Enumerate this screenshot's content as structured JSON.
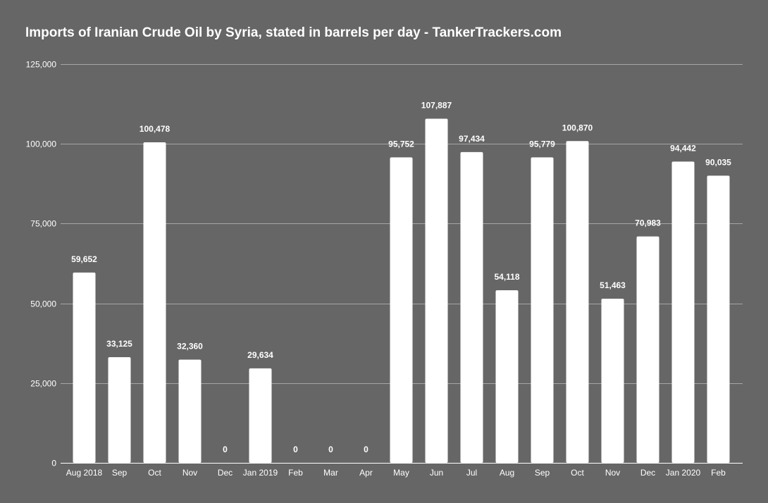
{
  "chart_data": {
    "type": "bar",
    "title": "Imports of Iranian Crude Oil by Syria, stated in barrels per day - TankerTrackers.com",
    "xlabel": "",
    "ylabel": "",
    "categories": [
      "Aug 2018",
      "Sep",
      "Oct",
      "Nov",
      "Dec",
      "Jan 2019",
      "Feb",
      "Mar",
      "Apr",
      "May",
      "Jun",
      "Jul",
      "Aug",
      "Sep",
      "Oct",
      "Nov",
      "Dec",
      "Jan 2020",
      "Feb"
    ],
    "values": [
      59652,
      33125,
      100478,
      32360,
      0,
      29634,
      0,
      0,
      0,
      95752,
      107887,
      97434,
      54118,
      95779,
      100870,
      51463,
      70983,
      94442,
      90035
    ],
    "data_labels": [
      "59,652",
      "33,125",
      "100,478",
      "32,360",
      "0",
      "29,634",
      "0",
      "0",
      "0",
      "95,752",
      "107,887",
      "97,434",
      "54,118",
      "95,779",
      "100,870",
      "51,463",
      "70,983",
      "94,442",
      "90,035"
    ],
    "ylim": [
      0,
      125000
    ],
    "yticks": [
      0,
      25000,
      50000,
      75000,
      100000,
      125000
    ],
    "ytick_labels": [
      "0",
      "25,000",
      "50,000",
      "75,000",
      "100,000",
      "125,000"
    ],
    "grid": true,
    "legend": "none",
    "colors": {
      "background": "#666666",
      "bar": "#ffffff",
      "grid": "#a6a6a6",
      "text": "#ffffff"
    }
  }
}
